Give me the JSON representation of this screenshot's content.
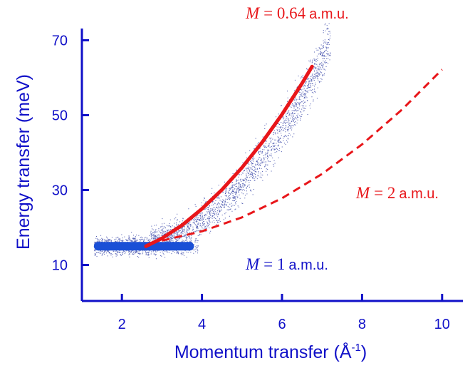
{
  "chart_data": {
    "type": "scatter",
    "title": "",
    "xlabel": "Momentum transfer (Å",
    "xlabel_sup": "-1",
    "xlabel_close": ")",
    "ylabel": "Energy transfer (meV)",
    "xlim": [
      1,
      10.2
    ],
    "ylim": [
      6,
      78
    ],
    "xticks": [
      "2",
      "4",
      "6",
      "8",
      "10"
    ],
    "yticks": [
      "10",
      "30",
      "50",
      "70"
    ],
    "grid": false,
    "colors": {
      "axis": "#1010c8",
      "points": "#1a2a9a",
      "flat_band": "#1a4fd6",
      "fit": "#e8161a",
      "annotation": "#e8161a"
    },
    "scatter_band": {
      "description_values": [
        {
          "x": 1.3,
          "y": 15
        },
        {
          "x": 2.6,
          "y": 15
        },
        {
          "x": 3.5,
          "y": 22
        },
        {
          "x": 4.5,
          "y": 33
        },
        {
          "x": 5.5,
          "y": 47
        },
        {
          "x": 6.3,
          "y": 62
        },
        {
          "x": 7.0,
          "y": 73
        }
      ]
    },
    "flat_band": {
      "x": [
        1.3,
        3.8
      ],
      "y": 15
    },
    "series": [
      {
        "name": "M = 0.64 a.m.u.",
        "style": "solid",
        "x": [
          2.6,
          3.0,
          3.5,
          4.0,
          4.5,
          5.0,
          5.5,
          6.0,
          6.5,
          6.75
        ],
        "y": [
          15,
          17.1,
          20.6,
          25.0,
          30.1,
          36.0,
          42.7,
          50.2,
          58.5,
          63.0
        ]
      },
      {
        "name": "M = 1 a.m.u.",
        "style": "flat",
        "x": [
          1.3,
          3.8
        ],
        "y": [
          15,
          15
        ]
      },
      {
        "name": "M = 2 a.m.u.",
        "style": "dashed",
        "x": [
          3.0,
          4.0,
          5.0,
          6.0,
          7.0,
          8.0,
          9.0,
          10.0
        ],
        "y": [
          16.5,
          19.0,
          22.7,
          27.8,
          34.3,
          42.2,
          51.5,
          62.2
        ]
      }
    ],
    "annotations": {
      "m064": {
        "var": "M",
        "eq": "= 0.64",
        "unit": "a.m.u."
      },
      "m2": {
        "var": "M",
        "eq": "= 2",
        "unit": "a.m.u."
      },
      "m1": {
        "var": "M",
        "eq": "= 1",
        "unit": "a.m.u."
      }
    }
  }
}
